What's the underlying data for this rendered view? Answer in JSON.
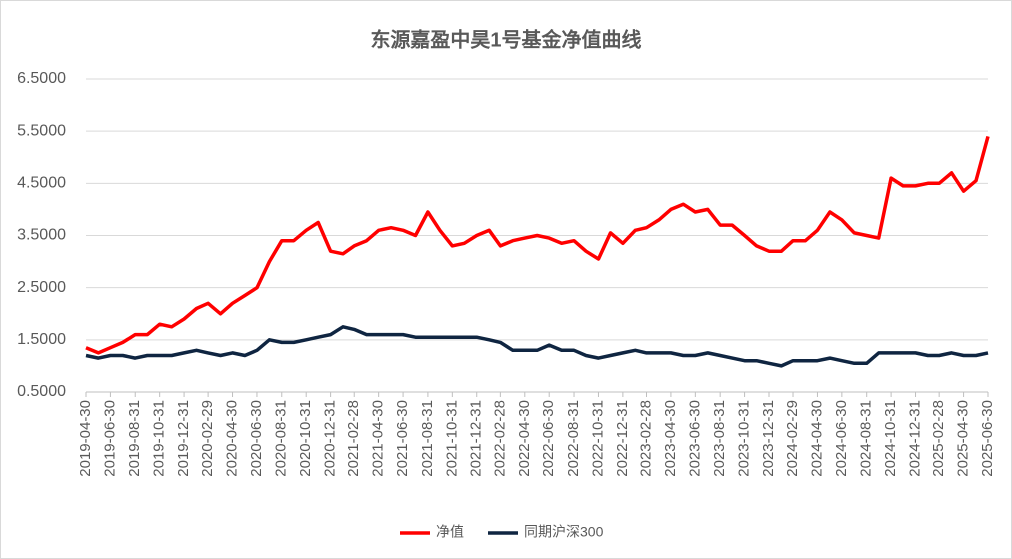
{
  "chart_data": {
    "type": "line",
    "title": "东源嘉盈中昊1号基金净值曲线",
    "x": [
      "2019-04-30",
      "2019-05-31",
      "2019-06-30",
      "2019-07-31",
      "2019-08-31",
      "2019-09-30",
      "2019-10-31",
      "2019-11-30",
      "2019-12-31",
      "2020-01-31",
      "2020-02-29",
      "2020-03-31",
      "2020-04-30",
      "2020-05-31",
      "2020-06-30",
      "2020-07-31",
      "2020-08-31",
      "2020-09-30",
      "2020-10-31",
      "2020-11-30",
      "2020-12-31",
      "2021-01-31",
      "2021-02-28",
      "2021-03-31",
      "2021-04-30",
      "2021-05-31",
      "2021-06-30",
      "2021-07-31",
      "2021-08-31",
      "2021-09-30",
      "2021-10-31",
      "2021-11-30",
      "2021-12-31",
      "2022-01-31",
      "2022-02-28",
      "2022-03-31",
      "2022-04-30",
      "2022-05-31",
      "2022-06-30",
      "2022-07-31",
      "2022-08-31",
      "2022-09-30",
      "2022-10-31",
      "2022-11-30",
      "2022-12-31",
      "2023-01-31",
      "2023-02-28",
      "2023-03-31",
      "2023-04-30",
      "2023-05-31",
      "2023-06-30",
      "2023-07-31",
      "2023-08-31",
      "2023-09-30",
      "2023-10-31",
      "2023-11-30",
      "2023-12-31",
      "2024-01-31",
      "2024-02-29",
      "2024-03-31",
      "2024-04-30",
      "2024-05-31",
      "2024-06-30",
      "2024-07-31",
      "2024-08-31",
      "2024-09-30",
      "2024-10-31",
      "2024-11-30",
      "2024-12-31",
      "2025-01-31",
      "2025-02-28",
      "2025-03-31",
      "2025-04-30",
      "2025-05-31",
      "2025-06-30"
    ],
    "series": [
      {
        "name": "净值",
        "color": "#ff0000",
        "values": [
          1.35,
          1.25,
          1.35,
          1.45,
          1.6,
          1.6,
          1.8,
          1.75,
          1.9,
          2.1,
          2.2,
          2.0,
          2.2,
          2.35,
          2.5,
          3.0,
          3.4,
          3.4,
          3.6,
          3.75,
          3.2,
          3.15,
          3.3,
          3.4,
          3.6,
          3.65,
          3.6,
          3.5,
          3.95,
          3.6,
          3.3,
          3.35,
          3.5,
          3.6,
          3.3,
          3.4,
          3.45,
          3.5,
          3.45,
          3.35,
          3.4,
          3.2,
          3.05,
          3.55,
          3.35,
          3.6,
          3.65,
          3.8,
          4.0,
          4.1,
          3.95,
          4.0,
          3.7,
          3.7,
          3.5,
          3.3,
          3.2,
          3.2,
          3.4,
          3.4,
          3.6,
          3.95,
          3.8,
          3.55,
          3.5,
          3.45,
          4.6,
          4.45,
          4.45,
          4.5,
          4.5,
          4.7,
          4.35,
          4.55,
          5.4
        ]
      },
      {
        "name": "同期沪深300",
        "color": "#0f2541",
        "values": [
          1.2,
          1.15,
          1.2,
          1.2,
          1.15,
          1.2,
          1.2,
          1.2,
          1.25,
          1.3,
          1.25,
          1.2,
          1.25,
          1.2,
          1.3,
          1.5,
          1.45,
          1.45,
          1.5,
          1.55,
          1.6,
          1.75,
          1.7,
          1.6,
          1.6,
          1.6,
          1.6,
          1.55,
          1.55,
          1.55,
          1.55,
          1.55,
          1.55,
          1.5,
          1.45,
          1.3,
          1.3,
          1.3,
          1.4,
          1.3,
          1.3,
          1.2,
          1.15,
          1.2,
          1.25,
          1.3,
          1.25,
          1.25,
          1.25,
          1.2,
          1.2,
          1.25,
          1.2,
          1.15,
          1.1,
          1.1,
          1.05,
          1.0,
          1.1,
          1.1,
          1.1,
          1.15,
          1.1,
          1.05,
          1.05,
          1.25,
          1.25,
          1.25,
          1.25,
          1.2,
          1.2,
          1.25,
          1.2,
          1.2,
          1.25
        ]
      }
    ],
    "xticks": [
      "2019-04-30",
      "2019-06-30",
      "2019-08-31",
      "2019-10-31",
      "2019-12-31",
      "2020-02-29",
      "2020-04-30",
      "2020-06-30",
      "2020-08-31",
      "2020-10-31",
      "2020-12-31",
      "2021-02-28",
      "2021-04-30",
      "2021-06-30",
      "2021-08-31",
      "2021-10-31",
      "2021-12-31",
      "2022-02-28",
      "2022-04-30",
      "2022-06-30",
      "2022-08-31",
      "2022-10-31",
      "2022-12-31",
      "2023-02-28",
      "2023-04-30",
      "2023-06-30",
      "2023-08-31",
      "2023-10-31",
      "2023-12-31",
      "2024-02-29",
      "2024-04-30",
      "2024-06-30",
      "2024-08-31",
      "2024-10-31",
      "2024-12-31",
      "2025-02-28",
      "2025-04-30",
      "2025-06-30"
    ],
    "ylim": [
      0.5,
      6.5
    ],
    "yticks": [
      {
        "value": 0.5,
        "label": "0.5000"
      },
      {
        "value": 1.5,
        "label": "1.5000"
      },
      {
        "value": 2.5,
        "label": "2.5000"
      },
      {
        "value": 3.5,
        "label": "3.5000"
      },
      {
        "value": 4.5,
        "label": "4.5000"
      },
      {
        "value": 5.5,
        "label": "5.5000"
      },
      {
        "value": 6.5,
        "label": "6.5000"
      }
    ],
    "grid": true,
    "legend": "bottom"
  }
}
